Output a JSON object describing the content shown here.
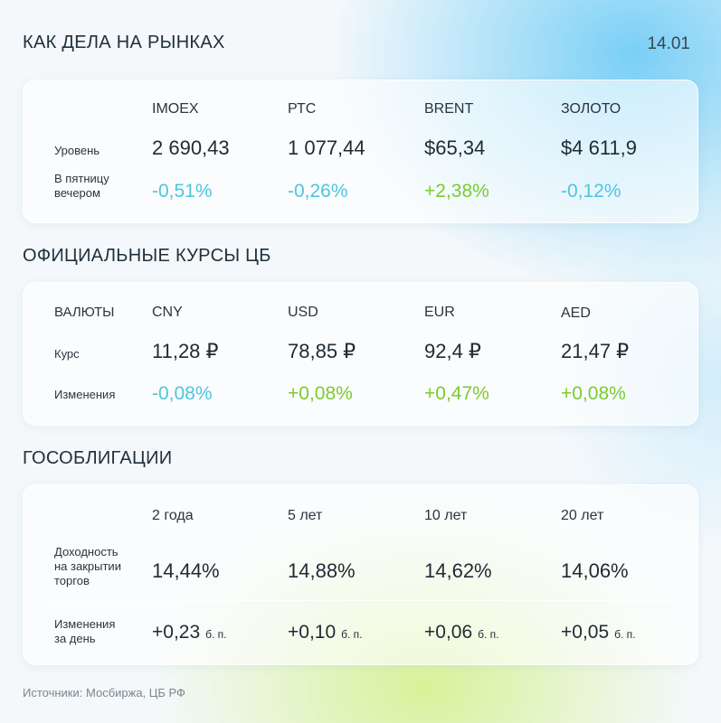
{
  "header": {
    "title": "КАК ДЕЛА НА РЫНКАХ",
    "date": "14.01"
  },
  "markets": {
    "columns": [
      "IMOEX",
      "РТС",
      "BRENT",
      "ЗОЛОТО"
    ],
    "level_label": "Уровень",
    "levels": [
      "2 690,43",
      "1 077,44",
      "$65,34",
      "$4 611,9"
    ],
    "change_label_line1": "В пятницу",
    "change_label_line2": "вечером",
    "changes": [
      "-0,51%",
      "-0,26%",
      "+2,38%",
      "-0,12%"
    ]
  },
  "rates": {
    "title": "ОФИЦИАЛЬНЫЕ КУРСЫ ЦБ",
    "header_label": "ВАЛЮТЫ",
    "columns": [
      "CNY",
      "USD",
      "EUR",
      "AED"
    ],
    "rate_label": "Курс",
    "rates": [
      "11,28 ₽",
      "78,85 ₽",
      "92,4 ₽",
      "21,47 ₽"
    ],
    "change_label": "Изменения",
    "changes": [
      "-0,08%",
      "+0,08%",
      "+0,47%",
      "+0,08%"
    ]
  },
  "bonds": {
    "title": "ГОСОБЛИГАЦИИ",
    "columns": [
      "2 года",
      "5 лет",
      "10 лет",
      "20 лет"
    ],
    "yield_label_line1": "Доходность",
    "yield_label_line2": "на закрытии",
    "yield_label_line3": "торгов",
    "yields": [
      "14,44%",
      "14,88%",
      "14,62%",
      "14,06%"
    ],
    "change_label_line1": "Изменения",
    "change_label_line2": "за день",
    "changes": [
      "+0,23",
      "+0,10",
      "+0,06",
      "+0,05"
    ],
    "unit": "б. п."
  },
  "footer": {
    "sources": "Источники: Мосбиржа, ЦБ РФ"
  },
  "colors": {
    "negative": "#4ec5dd",
    "positive": "#7acb2e"
  }
}
